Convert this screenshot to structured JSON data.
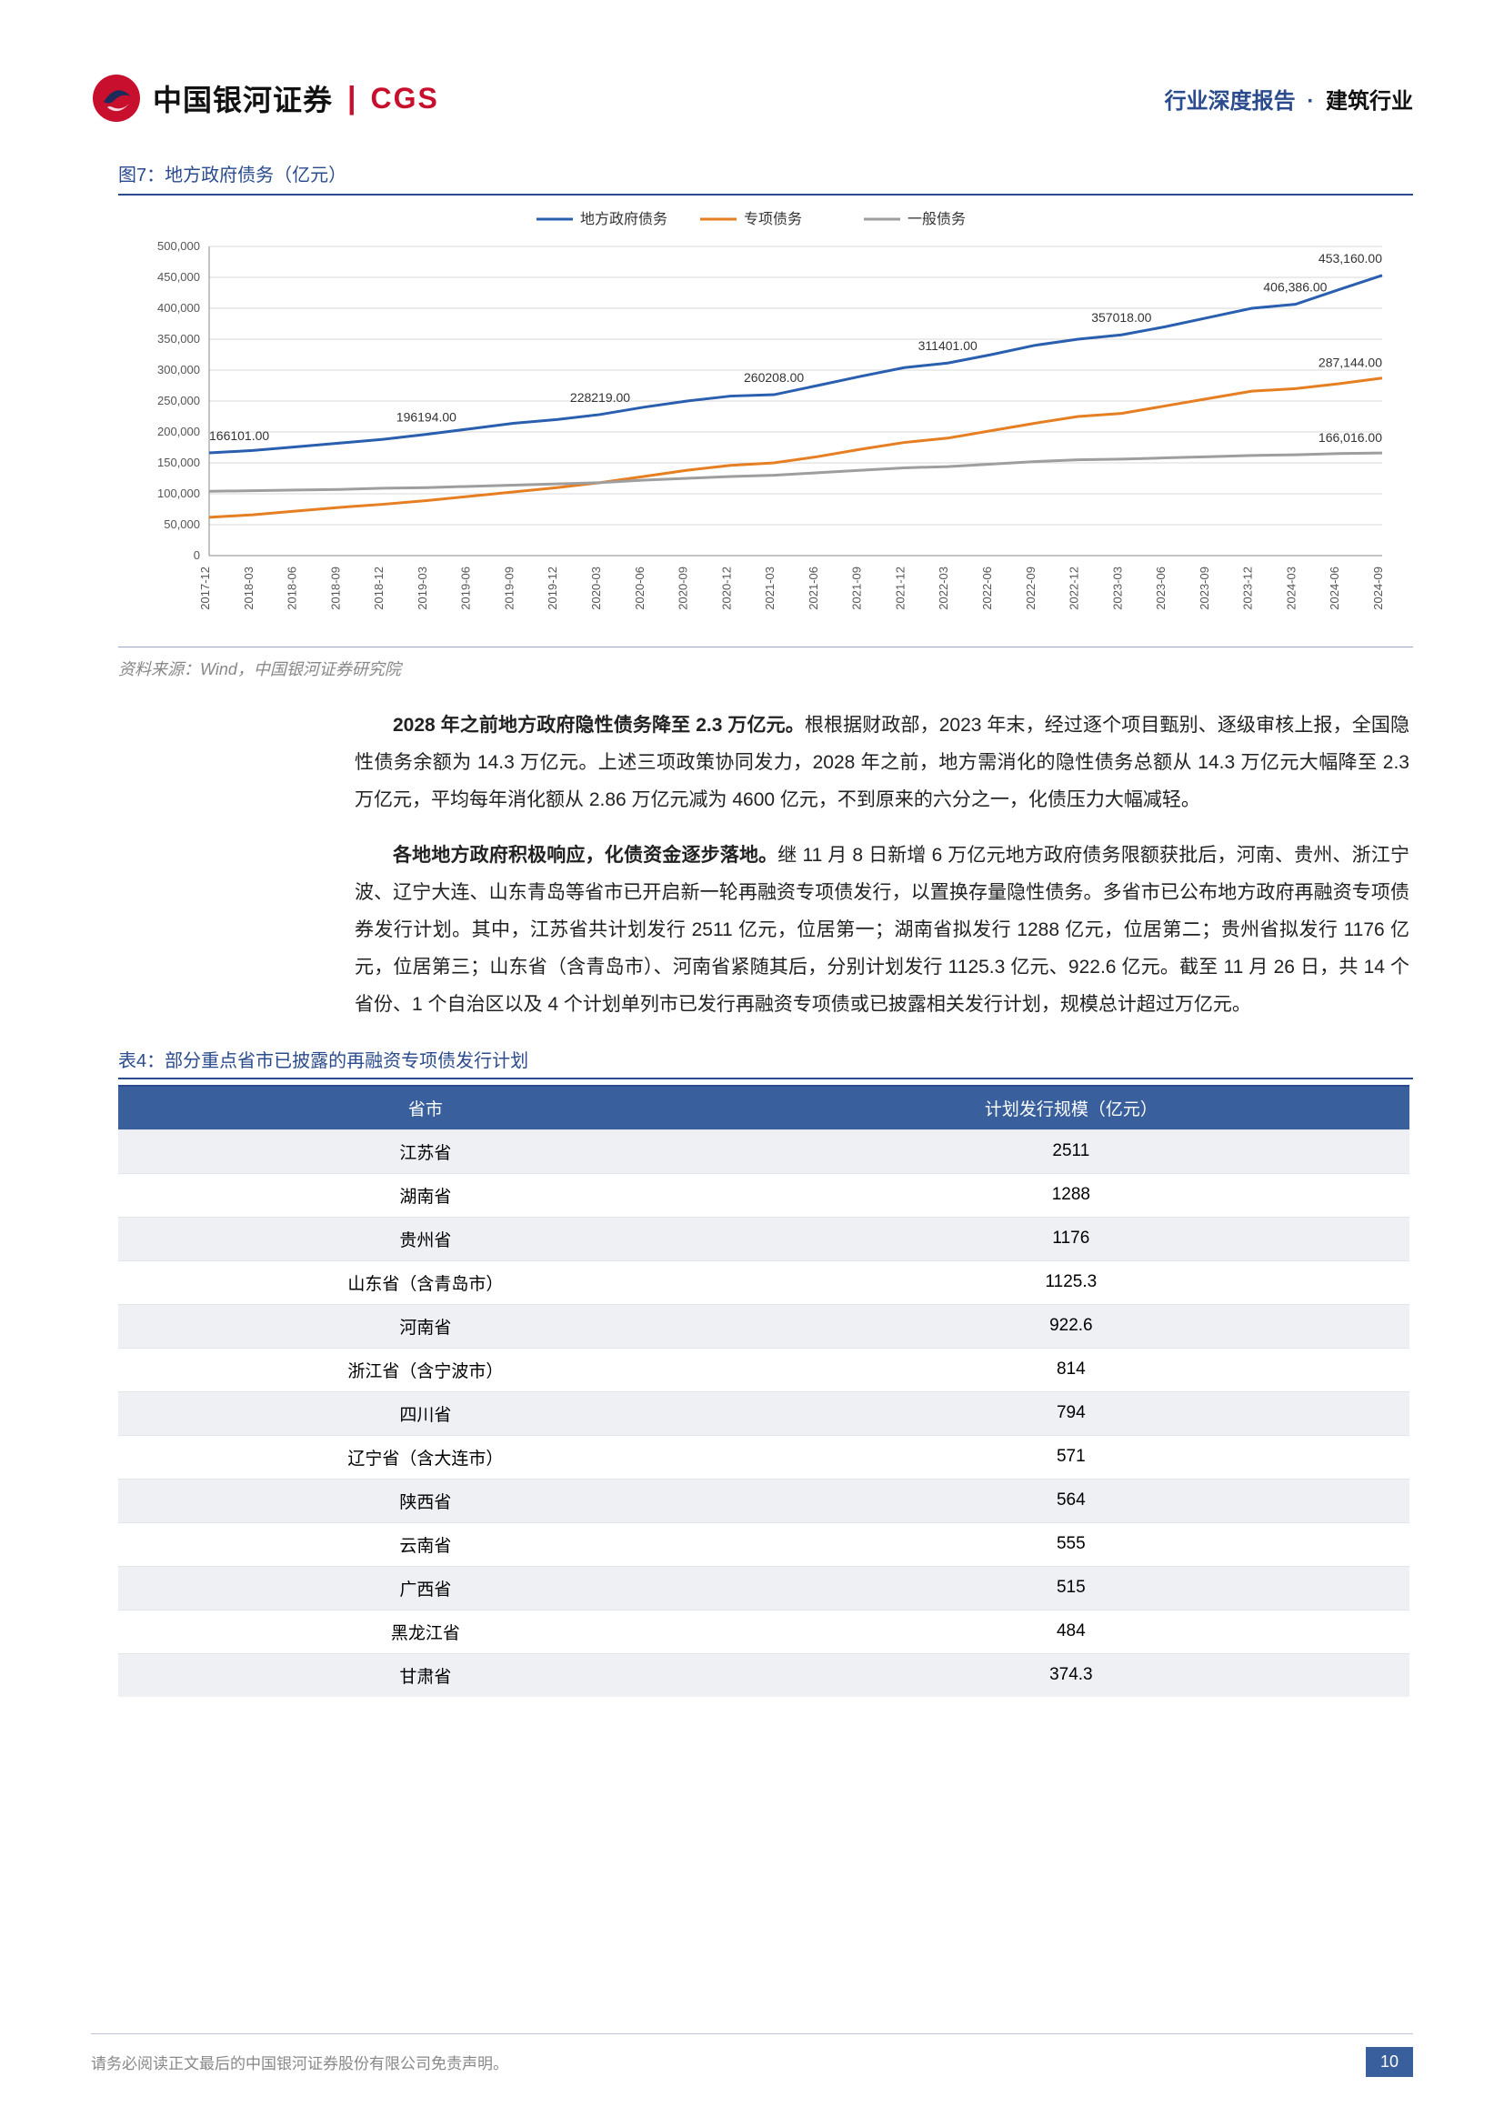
{
  "header": {
    "company": "中国银河证券",
    "cgs": "CGS",
    "right_blue": "行业深度报告",
    "right_dot": "·",
    "right_black": "建筑行业"
  },
  "figure7": {
    "title": "图7：地方政府债务（亿元）",
    "type": "line",
    "legend": [
      "地方政府债务",
      "专项债务",
      "一般债务"
    ],
    "colors": [
      "#2a5fb0",
      "#e67e22",
      "#9e9e9e"
    ],
    "background_color": "#ffffff",
    "grid_color": "#d9d9d9",
    "line_width": 3,
    "ylim": [
      0,
      500000
    ],
    "ytick_step": 50000,
    "yticks": [
      "0",
      "50,000",
      "100,000",
      "150,000",
      "200,000",
      "250,000",
      "300,000",
      "350,000",
      "400,000",
      "450,000",
      "500,000"
    ],
    "x_categories": [
      "2017-12",
      "2018-03",
      "2018-06",
      "2018-09",
      "2018-12",
      "2019-03",
      "2019-06",
      "2019-09",
      "2019-12",
      "2020-03",
      "2020-06",
      "2020-09",
      "2020-12",
      "2021-03",
      "2021-06",
      "2021-09",
      "2021-12",
      "2022-03",
      "2022-06",
      "2022-09",
      "2022-12",
      "2023-03",
      "2023-06",
      "2023-09",
      "2023-12",
      "2024-03",
      "2024-06",
      "2024-09"
    ],
    "series": {
      "local_gov": [
        166101,
        170000,
        176000,
        182000,
        188000,
        196194,
        205000,
        214000,
        220000,
        228219,
        240000,
        250000,
        258000,
        260208,
        275000,
        290000,
        304000,
        311401,
        325000,
        340000,
        350000,
        357018,
        370000,
        385000,
        400000,
        406386,
        430000,
        453160
      ],
      "special": [
        62000,
        66000,
        72000,
        78000,
        83000,
        89000,
        96000,
        103000,
        110000,
        118000,
        128000,
        138000,
        146000,
        150000,
        160000,
        172000,
        183000,
        190000,
        202000,
        214000,
        225000,
        230000,
        242000,
        254000,
        266000,
        270000,
        278000,
        287144
      ],
      "general": [
        104000,
        105000,
        106000,
        107000,
        109000,
        110000,
        112000,
        114000,
        116000,
        118000,
        122000,
        125000,
        128000,
        130000,
        134000,
        138000,
        142000,
        144000,
        148000,
        152000,
        155000,
        156000,
        158000,
        160000,
        162000,
        163000,
        165000,
        166016
      ]
    },
    "callouts": [
      {
        "text": "166101.00",
        "series": 0,
        "xi": 0,
        "dy": -14
      },
      {
        "text": "196194.00",
        "series": 0,
        "xi": 5,
        "dy": -14
      },
      {
        "text": "228219.00",
        "series": 0,
        "xi": 9,
        "dy": -14
      },
      {
        "text": "260208.00",
        "series": 0,
        "xi": 13,
        "dy": -14
      },
      {
        "text": "311401.00",
        "series": 0,
        "xi": 17,
        "dy": -14
      },
      {
        "text": "357018.00",
        "series": 0,
        "xi": 21,
        "dy": -14
      },
      {
        "text": "406,386.00",
        "series": 0,
        "xi": 25,
        "dy": -14
      },
      {
        "text": "453,160.00",
        "series": 0,
        "xi": 27,
        "dy": -14
      },
      {
        "text": "287,144.00",
        "series": 1,
        "xi": 27,
        "dy": -12
      },
      {
        "text": "166,016.00",
        "series": 2,
        "xi": 27,
        "dy": -12
      }
    ],
    "axis_fontsize": 13,
    "legend_fontsize": 16
  },
  "source": "资料来源：Wind，中国银河证券研究院",
  "para1_lead": "2028 年之前地方政府隐性债务降至 2.3 万亿元。",
  "para1_rest": "根根据财政部，2023 年末，经过逐个项目甄别、逐级审核上报，全国隐性债务余额为 14.3 万亿元。上述三项政策协同发力，2028 年之前，地方需消化的隐性债务总额从 14.3 万亿元大幅降至 2.3 万亿元，平均每年消化额从 2.86 万亿元减为 4600 亿元，不到原来的六分之一，化债压力大幅减轻。",
  "para2_lead": "各地地方政府积极响应，化债资金逐步落地。",
  "para2_rest": "继 11 月 8 日新增 6 万亿元地方政府债务限额获批后，河南、贵州、浙江宁波、辽宁大连、山东青岛等省市已开启新一轮再融资专项债发行，以置换存量隐性债务。多省市已公布地方政府再融资专项债券发行计划。其中，江苏省共计划发行 2511 亿元，位居第一；湖南省拟发行 1288 亿元，位居第二；贵州省拟发行 1176 亿元，位居第三；山东省（含青岛市）、河南省紧随其后，分别计划发行 1125.3 亿元、922.6 亿元。截至 11 月 26 日，共 14 个省份、1 个自治区以及 4 个计划单列市已发行再融资专项债或已披露相关发行计划，规模总计超过万亿元。",
  "table4": {
    "title": "表4：部分重点省市已披露的再融资专项债发行计划",
    "columns": [
      "省市",
      "计划发行规模（亿元）"
    ],
    "rows": [
      [
        "江苏省",
        "2511"
      ],
      [
        "湖南省",
        "1288"
      ],
      [
        "贵州省",
        "1176"
      ],
      [
        "山东省（含青岛市）",
        "1125.3"
      ],
      [
        "河南省",
        "922.6"
      ],
      [
        "浙江省（含宁波市）",
        "814"
      ],
      [
        "四川省",
        "794"
      ],
      [
        "辽宁省（含大连市）",
        "571"
      ],
      [
        "陕西省",
        "564"
      ],
      [
        "云南省",
        "555"
      ],
      [
        "广西省",
        "515"
      ],
      [
        "黑龙江省",
        "484"
      ],
      [
        "甘肃省",
        "374.3"
      ]
    ]
  },
  "footer": {
    "text": "请务必阅读正文最后的中国银河证券股份有限公司免责声明。",
    "page": "10"
  }
}
